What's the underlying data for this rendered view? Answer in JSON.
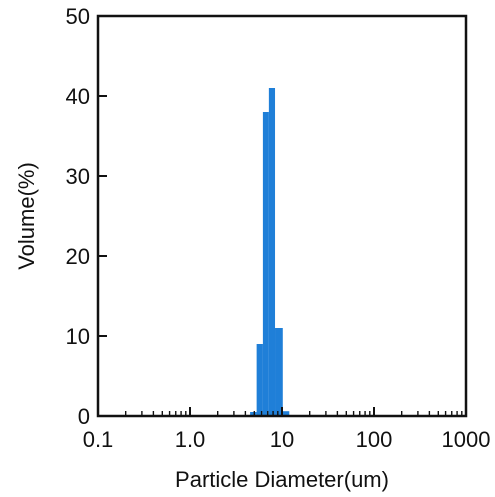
{
  "chart_data": {
    "type": "bar",
    "xscale": "log",
    "xlabel": "Particle Diameter(um)",
    "ylabel": "Volume(%)",
    "xlim": [
      0.1,
      1000
    ],
    "ylim": [
      0,
      50
    ],
    "x_ticks": [
      {
        "value": 0.1,
        "label": "0.1"
      },
      {
        "value": 1,
        "label": "1.0"
      },
      {
        "value": 10,
        "label": "10"
      },
      {
        "value": 100,
        "label": "100"
      },
      {
        "value": 1000,
        "label": "1000"
      }
    ],
    "y_ticks": [
      {
        "value": 0,
        "label": "0"
      },
      {
        "value": 10,
        "label": "10"
      },
      {
        "value": 20,
        "label": "20"
      },
      {
        "value": 30,
        "label": "30"
      },
      {
        "value": 40,
        "label": "40"
      },
      {
        "value": 50,
        "label": "50"
      }
    ],
    "grid": false,
    "bar_color": "#1f7fd8",
    "bins": [
      {
        "x0": 4.5,
        "x1": 5.3,
        "value": 0.5
      },
      {
        "x0": 5.3,
        "x1": 6.2,
        "value": 9
      },
      {
        "x0": 6.2,
        "x1": 7.2,
        "value": 38
      },
      {
        "x0": 7.2,
        "x1": 8.4,
        "value": 41
      },
      {
        "x0": 8.4,
        "x1": 10.2,
        "value": 11
      },
      {
        "x0": 10.2,
        "x1": 12.0,
        "value": 0.6
      }
    ]
  }
}
